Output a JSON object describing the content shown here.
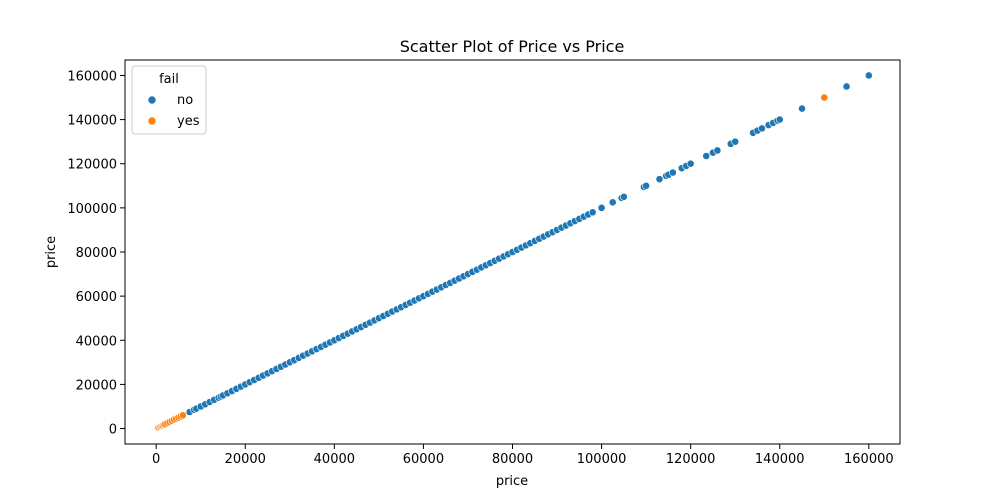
{
  "chart_data": {
    "type": "scatter",
    "title": "Scatter Plot of Price vs Price",
    "xlabel": "price",
    "ylabel": "price",
    "xlim": [
      -7000,
      167000
    ],
    "ylim": [
      -7000,
      167000
    ],
    "xticks": [
      0,
      20000,
      40000,
      60000,
      80000,
      100000,
      120000,
      140000,
      160000
    ],
    "yticks": [
      0,
      20000,
      40000,
      60000,
      80000,
      100000,
      120000,
      140000,
      160000
    ],
    "grid": false,
    "legend": {
      "title": "fail",
      "placement": "top-left"
    },
    "series": [
      {
        "name": "no",
        "color": "#1f77b4",
        "values": [
          7500,
          8500,
          9000,
          10000,
          11000,
          12000,
          13000,
          14000,
          14500,
          15000,
          16000,
          17000,
          18000,
          19000,
          20000,
          21000,
          22000,
          23000,
          24000,
          25000,
          26000,
          27000,
          28000,
          29000,
          30000,
          31000,
          32000,
          33000,
          34000,
          35000,
          36000,
          37000,
          38000,
          39000,
          40000,
          41000,
          42000,
          43000,
          44000,
          45000,
          46000,
          47000,
          48000,
          49000,
          50000,
          51000,
          52000,
          53000,
          54000,
          55000,
          56000,
          57000,
          58000,
          59000,
          60000,
          61000,
          62000,
          63000,
          64000,
          65000,
          66000,
          67000,
          68000,
          69000,
          70000,
          71000,
          72000,
          73000,
          74000,
          75000,
          76000,
          77000,
          78000,
          79000,
          80000,
          81000,
          82000,
          83000,
          84000,
          85000,
          86000,
          87000,
          88000,
          89000,
          90000,
          91000,
          92000,
          93000,
          94000,
          95000,
          96000,
          97000,
          98000,
          100000,
          102500,
          104500,
          105000,
          109500,
          110000,
          113000,
          114500,
          115000,
          116000,
          118000,
          119000,
          120000,
          123500,
          125000,
          126000,
          129000,
          130000,
          134000,
          135000,
          136000,
          137500,
          138500,
          139500,
          140000,
          145000,
          155000,
          160000
        ]
      },
      {
        "name": "yes",
        "color": "#ff7f0e",
        "values": [
          500,
          800,
          1000,
          1300,
          1500,
          1800,
          2000,
          2500,
          3000,
          3500,
          4000,
          4500,
          5000,
          5500,
          6000,
          150000
        ]
      }
    ]
  }
}
